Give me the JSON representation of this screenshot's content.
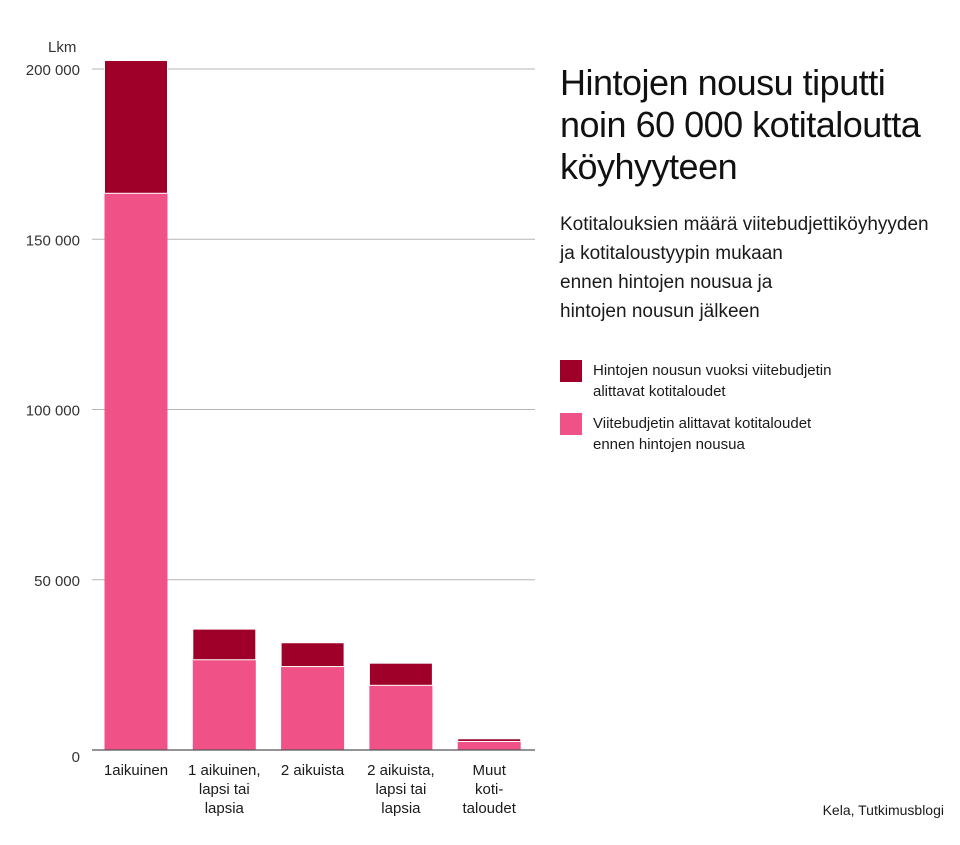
{
  "title": "Hintojen nousu tiputti noin 60 000 kotitaloutta köyhyyteen",
  "subtitle": "Kotitalouksien määrä viitebudjettiköyhyyden\nja kotitaloustyypin mukaan\nennen hintojen nousua ja\nhintojen nousun jälkeen",
  "source": "Kela, Tutkimusblogi",
  "colors": {
    "base": "#f05287",
    "increase": "#9e0029",
    "grid": "#b5b5b5",
    "axis": "#555555"
  },
  "legend": [
    {
      "label": "Hintojen nousun vuoksi viitebudjetin\nalittavat kotitaloudet",
      "color": "#9e0029"
    },
    {
      "label": "Viitebudjetin alittavat kotitaloudet\nennen hintojen nousua",
      "color": "#f05287"
    }
  ],
  "chart_data": {
    "type": "bar",
    "stacked": true,
    "unit_label": "Lkm",
    "categories": [
      [
        "1aikuinen"
      ],
      [
        "1 aikuinen,",
        "lapsi tai",
        "lapsia"
      ],
      [
        "2 aikuista"
      ],
      [
        "2 aikuista,",
        "lapsi tai",
        "lapsia"
      ],
      [
        "Muut",
        "koti-",
        "taloudet"
      ]
    ],
    "series": [
      {
        "name": "Viitebudjetin alittavat kotitaloudet ennen hintojen nousua",
        "color": "#f05287",
        "values": [
          163500,
          26500,
          24500,
          19000,
          2500
        ]
      },
      {
        "name": "Hintojen nousun vuoksi viitebudjetin alittavat kotitaloudet",
        "color": "#9e0029",
        "values": [
          39000,
          9000,
          7000,
          6500,
          800
        ]
      }
    ],
    "ylim": [
      0,
      200000
    ],
    "yticks": [
      0,
      50000,
      100000,
      150000,
      200000
    ],
    "ytick_labels": [
      "0",
      "50 000",
      "100 000",
      "150 000",
      "200 000"
    ],
    "grid": true
  }
}
